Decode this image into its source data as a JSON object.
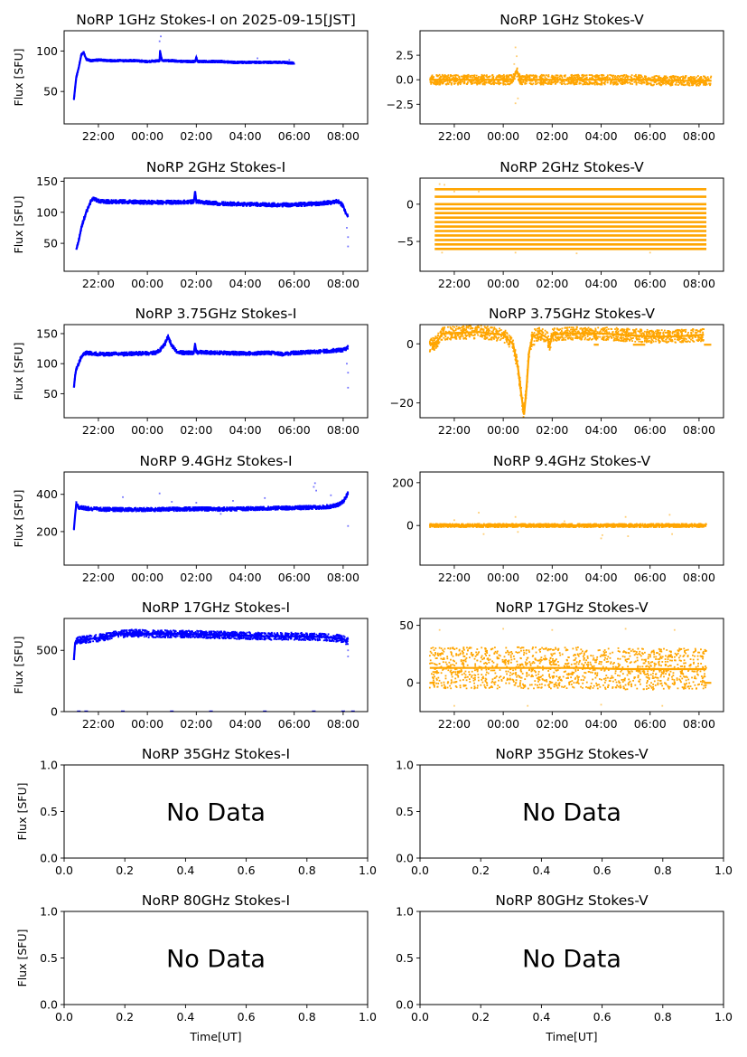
{
  "figure": {
    "xlabel": "Time[UT]",
    "no_data_text": "No Data",
    "time_ticks": [
      "22:00",
      "00:00",
      "02:00",
      "04:00",
      "06:00",
      "08:00"
    ],
    "unit_ticks": [
      "0.0",
      "0.2",
      "0.4",
      "0.6",
      "0.8",
      "1.0"
    ],
    "unit_yticks": [
      "0.0",
      "0.5",
      "1.0"
    ],
    "colors": {
      "stokes_i": "#0000ff",
      "stokes_v": "#ffa500"
    }
  },
  "chart_data": [
    {
      "type": "scatter",
      "title": "NoRP 1GHz Stokes-I on 2025-09-15[JST]",
      "ylabel": "Flux [SFU]",
      "xlim": [
        -3.4,
        9.0
      ],
      "ylim": [
        10,
        125
      ],
      "yticks": [
        50,
        100
      ],
      "ytick_labels": [
        "50",
        "100"
      ],
      "color": "stokes_i",
      "band": 1.2,
      "x": [
        -3.0,
        -2.95,
        -2.9,
        -2.8,
        -2.7,
        -2.6,
        -2.5,
        -2.3,
        -2.0,
        -1.5,
        -1.0,
        -0.5,
        0.0,
        0.5,
        0.52,
        0.55,
        0.6,
        0.7,
        1.0,
        1.5,
        1.95,
        2.0,
        2.05,
        2.5,
        3.0,
        3.5,
        4.0,
        4.5,
        5.0,
        5.5,
        6.0
      ],
      "y": [
        40,
        55,
        68,
        80,
        95,
        98,
        90,
        88,
        89,
        88,
        88,
        88,
        87,
        88,
        100,
        95,
        88,
        88,
        88,
        87,
        87,
        92,
        87,
        87,
        87,
        86,
        86,
        86,
        86,
        86,
        85
      ],
      "outliers": [
        [
          0.55,
          118
        ],
        [
          0.5,
          112
        ],
        [
          4.5,
          91
        ],
        [
          5.8,
          89
        ]
      ]
    },
    {
      "type": "scatter",
      "title": "NoRP 1GHz Stokes-V",
      "ylabel": "",
      "xlim": [
        -3.4,
        9.0
      ],
      "ylim": [
        -4.5,
        5.0
      ],
      "yticks": [
        -2.5,
        0.0,
        2.5
      ],
      "ytick_labels": [
        "−2.5",
        "0.0",
        "2.5"
      ],
      "color": "stokes_v",
      "band": 0.5,
      "x": [
        -3.0,
        -1.0,
        0.4,
        0.55,
        0.7,
        2.0,
        4.0,
        6.0,
        6.05,
        8.5
      ],
      "y": [
        0.0,
        0.0,
        0.0,
        0.9,
        0.0,
        0.0,
        0.0,
        0.0,
        -0.1,
        -0.1
      ],
      "outliers": [
        [
          0.5,
          3.3
        ],
        [
          0.55,
          2.4
        ],
        [
          0.5,
          -2.4
        ],
        [
          0.6,
          -1.9
        ],
        [
          0.45,
          1.6
        ]
      ]
    },
    {
      "type": "scatter",
      "title": "NoRP 2GHz Stokes-I",
      "ylabel": "Flux [SFU]",
      "xlim": [
        -3.4,
        9.0
      ],
      "ylim": [
        5,
        155
      ],
      "yticks": [
        50,
        100,
        150
      ],
      "ytick_labels": [
        "50",
        "100",
        "150"
      ],
      "color": "stokes_i",
      "band": 3,
      "x": [
        -2.9,
        -2.8,
        -2.7,
        -2.5,
        -2.3,
        -2.2,
        -2.0,
        -1.5,
        -1.0,
        0.0,
        1.0,
        1.9,
        1.95,
        2.0,
        3.0,
        4.0,
        5.0,
        6.0,
        7.0,
        7.5,
        7.8,
        8.0,
        8.1,
        8.2
      ],
      "y": [
        40,
        55,
        75,
        100,
        118,
        122,
        118,
        117,
        117,
        116,
        116,
        117,
        134,
        117,
        114,
        113,
        112,
        112,
        114,
        116,
        118,
        110,
        100,
        92
      ],
      "outliers": [
        [
          8.2,
          45
        ],
        [
          8.2,
          60
        ],
        [
          8.15,
          75
        ]
      ]
    },
    {
      "type": "scatter",
      "title": "NoRP 2GHz Stokes-V",
      "ylabel": "",
      "xlim": [
        -3.4,
        9.0
      ],
      "ylim": [
        -9,
        3.5
      ],
      "yticks": [
        -5,
        0
      ],
      "ytick_labels": [
        "−5",
        "0"
      ],
      "color": "stokes_v",
      "band": 0.25,
      "striped": true,
      "x_range": [
        -2.8,
        8.3
      ],
      "levels": [
        2.0,
        1.0,
        0.0,
        -0.6,
        -1.2,
        -1.8,
        -2.4,
        -3.0,
        -3.6,
        -4.2,
        -4.8,
        -5.4,
        -6.0
      ],
      "x": [],
      "y": [],
      "outliers": [
        [
          -2.4,
          2.6
        ],
        [
          -2.6,
          2.7
        ],
        [
          -2.0,
          1.7
        ],
        [
          -1.0,
          1.7
        ],
        [
          -2.5,
          -6.5
        ],
        [
          0.5,
          -6.5
        ],
        [
          3.0,
          -6.6
        ],
        [
          6.0,
          -6.5
        ]
      ]
    },
    {
      "type": "scatter",
      "title": "NoRP 3.75GHz Stokes-I",
      "ylabel": "Flux [SFU]",
      "xlim": [
        -3.4,
        9.0
      ],
      "ylim": [
        10,
        165
      ],
      "yticks": [
        50,
        100,
        150
      ],
      "ytick_labels": [
        "50",
        "100",
        "150"
      ],
      "color": "stokes_i",
      "band": 3,
      "x": [
        -3.0,
        -2.95,
        -2.9,
        -2.8,
        -2.7,
        -2.5,
        -2.0,
        -1.5,
        -1.0,
        -0.5,
        0.0,
        0.3,
        0.5,
        0.7,
        0.85,
        1.0,
        1.2,
        1.5,
        1.9,
        1.95,
        2.0,
        3.0,
        4.0,
        5.0,
        5.5,
        6.0,
        7.0,
        8.0,
        8.2
      ],
      "y": [
        60,
        80,
        92,
        100,
        112,
        118,
        116,
        116,
        116,
        117,
        117,
        118,
        122,
        132,
        145,
        130,
        120,
        118,
        118,
        133,
        119,
        118,
        117,
        118,
        116,
        118,
        120,
        123,
        127
      ],
      "outliers": [
        [
          8.2,
          60
        ],
        [
          8.2,
          85
        ],
        [
          8.15,
          100
        ]
      ]
    },
    {
      "type": "scatter",
      "title": "NoRP 3.75GHz Stokes-V",
      "ylabel": "",
      "xlim": [
        -3.4,
        9.0
      ],
      "ylim": [
        -25,
        6.5
      ],
      "yticks": [
        -20,
        0
      ],
      "ytick_labels": [
        "−20",
        "0"
      ],
      "color": "stokes_v",
      "band": 2.2,
      "x": [
        -3.0,
        -2.8,
        -2.6,
        -2.5,
        -1.0,
        0.0,
        0.4,
        0.6,
        0.75,
        0.85,
        0.95,
        1.05,
        1.2,
        1.5,
        1.8,
        1.9,
        2.0,
        2.5,
        4.0,
        5.0,
        6.0,
        7.0,
        8.2
      ],
      "y": [
        -0.5,
        0.0,
        2.0,
        3.5,
        4.0,
        3.0,
        0.0,
        -8.0,
        -18.0,
        -24.0,
        -15.0,
        -3.0,
        2.5,
        3.5,
        2.0,
        -0.5,
        3.0,
        3.5,
        3.5,
        3.0,
        2.5,
        2.5,
        3.0
      ],
      "flats": [
        [
          -3.0,
          -2.7,
          -0.3
        ],
        [
          1.1,
          1.3,
          -0.3
        ],
        [
          5.3,
          5.8,
          -0.3
        ],
        [
          8.2,
          8.5,
          -0.3
        ],
        [
          3.7,
          3.9,
          -0.3
        ]
      ],
      "outliers": []
    },
    {
      "type": "scatter",
      "title": "NoRP 9.4GHz Stokes-I",
      "ylabel": "Flux [SFU]",
      "xlim": [
        -3.4,
        9.0
      ],
      "ylim": [
        20,
        520
      ],
      "yticks": [
        200,
        400
      ],
      "ytick_labels": [
        "200",
        "400"
      ],
      "color": "stokes_i",
      "band": 10,
      "x": [
        -3.0,
        -2.95,
        -2.9,
        -2.8,
        -2.5,
        -2.0,
        -1.0,
        0.0,
        1.0,
        2.0,
        3.0,
        4.0,
        5.0,
        6.0,
        7.0,
        7.5,
        7.8,
        8.0,
        8.2
      ],
      "y": [
        210,
        290,
        350,
        330,
        325,
        320,
        318,
        318,
        320,
        322,
        320,
        323,
        325,
        328,
        330,
        335,
        345,
        360,
        405
      ],
      "outliers": [
        [
          -1.0,
          385
        ],
        [
          0.5,
          405
        ],
        [
          1.0,
          360
        ],
        [
          2.0,
          355
        ],
        [
          3.5,
          365
        ],
        [
          4.8,
          380
        ],
        [
          6.8,
          440
        ],
        [
          6.85,
          460
        ],
        [
          6.9,
          420
        ],
        [
          7.5,
          395
        ],
        [
          8.2,
          230
        ],
        [
          3.0,
          295
        ]
      ]
    },
    {
      "type": "scatter",
      "title": "NoRP 9.4GHz Stokes-V",
      "ylabel": "",
      "xlim": [
        -3.4,
        9.0
      ],
      "ylim": [
        -185,
        250
      ],
      "yticks": [
        0,
        200
      ],
      "ytick_labels": [
        "0",
        "200"
      ],
      "color": "stokes_v",
      "band": 8,
      "x": [
        -3.0,
        -1.0,
        1.0,
        3.0,
        5.0,
        7.0,
        8.3
      ],
      "y": [
        0,
        0,
        0,
        0,
        0,
        0,
        0
      ],
      "outliers": [
        [
          -1.0,
          60
        ],
        [
          -0.8,
          -40
        ],
        [
          0.5,
          40
        ],
        [
          0.6,
          -30
        ],
        [
          4.0,
          -60
        ],
        [
          4.05,
          -45
        ],
        [
          5.0,
          40
        ],
        [
          5.1,
          -50
        ],
        [
          6.8,
          50
        ],
        [
          6.9,
          -40
        ],
        [
          -2.0,
          25
        ],
        [
          2.5,
          20
        ]
      ]
    },
    {
      "type": "scatter",
      "title": "NoRP 17GHz Stokes-I",
      "ylabel": "Flux [SFU]",
      "xlim": [
        -3.4,
        9.0
      ],
      "ylim": [
        0,
        760
      ],
      "yticks": [
        0,
        500
      ],
      "ytick_labels": [
        "0",
        "500"
      ],
      "color": "stokes_i",
      "band": 30,
      "x": [
        -3.0,
        -2.95,
        -2.9,
        -2.5,
        -2.0,
        -1.5,
        -1.0,
        -0.5,
        0.0,
        1.0,
        2.0,
        3.0,
        4.0,
        5.0,
        6.0,
        7.0,
        7.5,
        8.0,
        8.2
      ],
      "y": [
        420,
        560,
        580,
        590,
        600,
        620,
        635,
        640,
        635,
        635,
        630,
        625,
        620,
        615,
        615,
        610,
        605,
        595,
        570
      ],
      "baseline": [
        [
          -2.8,
          0
        ],
        [
          -2.5,
          0
        ],
        [
          -1.0,
          0
        ],
        [
          1.0,
          0
        ],
        [
          2.6,
          0
        ],
        [
          4.8,
          0
        ],
        [
          6.8,
          0
        ],
        [
          8.0,
          0
        ],
        [
          8.4,
          0
        ]
      ],
      "outliers": [
        [
          8.2,
          450
        ],
        [
          8.2,
          500
        ]
      ]
    },
    {
      "type": "scatter",
      "title": "NoRP 17GHz Stokes-V",
      "ylabel": "",
      "xlim": [
        -3.4,
        9.0
      ],
      "ylim": [
        -25,
        56
      ],
      "yticks": [
        0,
        50
      ],
      "ytick_labels": [
        "0",
        "50"
      ],
      "color": "stokes_v",
      "band": 18,
      "x": [
        -3.0,
        -1.0,
        1.0,
        3.0,
        5.0,
        7.0,
        8.3
      ],
      "y": [
        13,
        13,
        13,
        13,
        12,
        12,
        12
      ],
      "flats": [
        [
          -3.0,
          -2.8,
          0
        ],
        [
          8.2,
          8.5,
          0
        ]
      ],
      "outliers": [
        [
          -2.6,
          46
        ],
        [
          0.0,
          47
        ],
        [
          2.0,
          46
        ],
        [
          5.0,
          47
        ],
        [
          7.0,
          46
        ],
        [
          -2.0,
          -20
        ],
        [
          1.0,
          -20
        ],
        [
          4.0,
          -19
        ],
        [
          6.5,
          -20
        ]
      ]
    },
    {
      "type": "empty",
      "title": "NoRP 35GHz Stokes-I",
      "ylabel": "Flux [SFU]"
    },
    {
      "type": "empty",
      "title": "NoRP 35GHz Stokes-V",
      "ylabel": ""
    },
    {
      "type": "empty",
      "title": "NoRP 80GHz Stokes-I",
      "ylabel": "Flux [SFU]"
    },
    {
      "type": "empty",
      "title": "NoRP 80GHz Stokes-V",
      "ylabel": ""
    }
  ]
}
